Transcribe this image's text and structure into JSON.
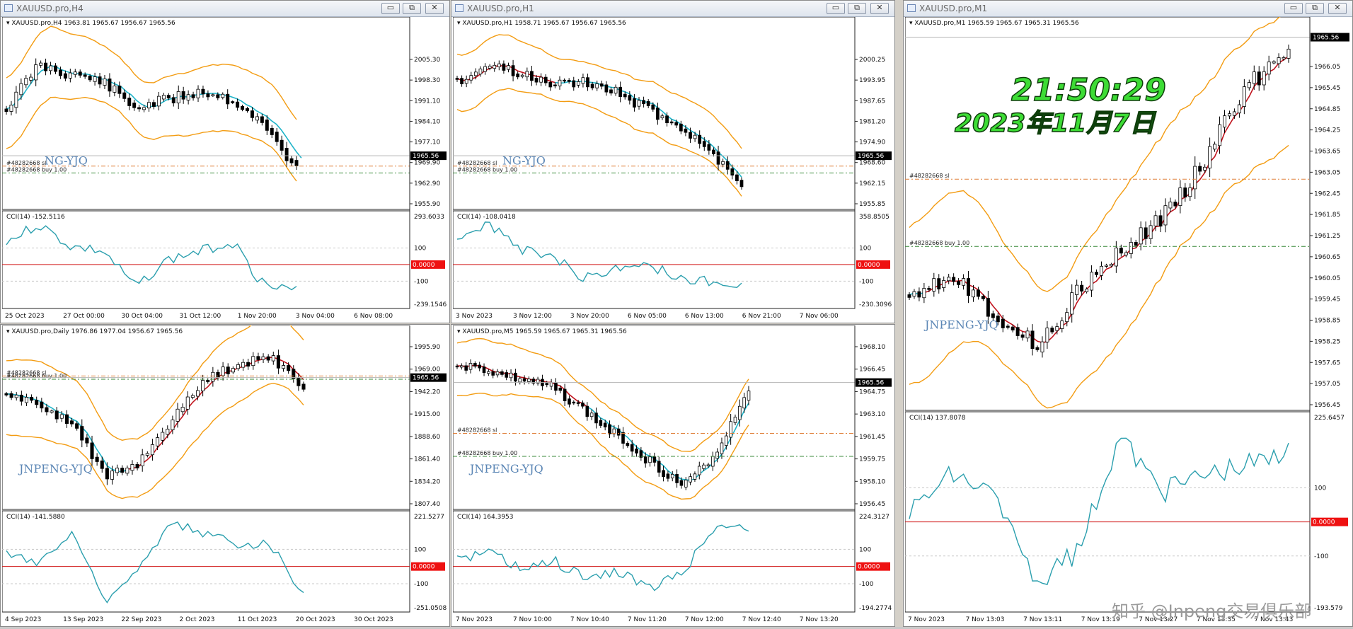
{
  "windows": [
    {
      "title": "XAUUSD.pro,H4",
      "main": {
        "header": "XAUUSD.pro,H4  1963.81 1965.67 1956.67 1965.56",
        "price_labels": [
          "2005.30",
          "1998.30",
          "1991.10",
          "1984.10",
          "1977.10",
          "1969.90",
          "1962.90",
          "1955.90"
        ],
        "current_price": "1965.56",
        "order_lines": [
          "#48282668 sl",
          "#48282668 buy 1.00"
        ],
        "watermark": "JNPENG-YJQ",
        "watermark_visible": "NG-YJQ"
      },
      "cci": {
        "header": "CCI(14) -152.5116",
        "labels": [
          "293.6033",
          "100",
          "0.0000",
          "-100",
          "-239.1546"
        ]
      },
      "dates": [
        "25 Oct 2023",
        "27 Oct 00:00",
        "30 Oct 04:00",
        "31 Oct 12:00",
        "1 Nov 20:00",
        "3 Nov 04:00",
        "6 Nov 08:00"
      ]
    },
    {
      "title": "XAUUSD.pro,H1",
      "main": {
        "header": "XAUUSD.pro,H1  1958.71 1965.67 1956.67 1965.56",
        "price_labels": [
          "2000.25",
          "1993.95",
          "1987.65",
          "1981.20",
          "1974.90",
          "1968.60",
          "1962.15",
          "1955.85"
        ],
        "current_price": "1965.56",
        "order_lines": [
          "#48282668 sl",
          "#48282668 buy 1.00"
        ],
        "watermark": "JNPENG-YJQ",
        "watermark_visible": "NG-YJQ"
      },
      "cci": {
        "header": "CCI(14) -108.0418",
        "labels": [
          "358.8505",
          "100",
          "0.0000",
          "-100",
          "-230.3096"
        ]
      },
      "dates": [
        "3 Nov 2023",
        "3 Nov 12:00",
        "3 Nov 20:00",
        "6 Nov 05:00",
        "6 Nov 13:00",
        "6 Nov 21:00",
        "7 Nov 06:00"
      ]
    },
    {
      "title": "XAUUSD.pro,M1",
      "main": {
        "header": "XAUUSD.pro,M1  1965.59 1965.67 1965.31 1965.56",
        "price_labels": [
          "1966.05",
          "1965.45",
          "1964.85",
          "1964.25",
          "1963.65",
          "1963.05",
          "1962.45",
          "1961.85",
          "1961.25",
          "1960.65",
          "1960.05",
          "1959.45",
          "1958.85",
          "1958.25",
          "1957.65",
          "1957.05",
          "1956.45"
        ],
        "current_price": "1965.56",
        "order_lines": [
          "#48282668 sl",
          "#48282668 buy 1.00"
        ],
        "watermark": "JNPENG-YJQ",
        "overlay_time": "21:50:29",
        "overlay_date": "2023年11月7日"
      },
      "cci": {
        "header": "CCI(14) 137.8078",
        "labels": [
          "225.6457",
          "100",
          "0.0000",
          "-100",
          "-193.579"
        ]
      },
      "dates": [
        "7 Nov 2023",
        "7 Nov 13:03",
        "7 Nov 13:11",
        "7 Nov 13:19",
        "7 Nov 13:27",
        "7 Nov 13:35",
        "7 Nov 13:43"
      ]
    },
    {
      "title": "",
      "main": {
        "header": "XAUUSD.pro,Daily  1976.86 1977.04 1956.67 1965.56",
        "price_labels": [
          "1995.90",
          "1969.00",
          "1942.20",
          "1915.00",
          "1888.60",
          "1861.40",
          "1834.20",
          "1807.40"
        ],
        "current_price": "1965.56",
        "order_lines": [
          "#48282668 sl",
          "#48282668 buy 1.00"
        ],
        "watermark": "JNPENG-YJQ"
      },
      "cci": {
        "header": "CCI(14) -141.5880",
        "labels": [
          "221.5277",
          "100",
          "0.0000",
          "-100",
          "-251.0508"
        ]
      },
      "dates": [
        "4 Sep 2023",
        "13 Sep 2023",
        "22 Sep 2023",
        "2 Oct 2023",
        "11 Oct 2023",
        "20 Oct 2023",
        "30 Oct 2023"
      ]
    },
    {
      "title": "",
      "main": {
        "header": "XAUUSD.pro,M5  1965.59 1965.67 1965.31 1965.56",
        "price_labels": [
          "1968.10",
          "1966.45",
          "1964.75",
          "1963.10",
          "1961.45",
          "1959.75",
          "1958.10",
          "1956.45"
        ],
        "current_price": "1965.56",
        "order_lines": [
          "#48282668 sl",
          "#48282668 buy 1.00"
        ],
        "watermark": "JNPENG-YJQ"
      },
      "cci": {
        "header": "CCI(14) 164.3953",
        "labels": [
          "224.3127",
          "100",
          "0.0000",
          "-100",
          "-194.2774"
        ]
      },
      "dates": [
        "7 Nov 2023",
        "7 Nov 10:00",
        "7 Nov 10:40",
        "7 Nov 11:20",
        "7 Nov 12:00",
        "7 Nov 12:40",
        "7 Nov 13:20"
      ]
    }
  ],
  "window_buttons": {
    "minimize": "▭",
    "restore": "⧉",
    "close": "✕"
  },
  "brand_watermark": "知乎 @Jnpeng交易俱乐部",
  "colors": {
    "bollinger": "#f39c12",
    "ma_fast": "#1fb4c9",
    "ma_slow": "#c0141e",
    "cci": "#2b9fae",
    "zero_line": "#d01616",
    "sl_line": "#e0803a",
    "buy_line": "#3a8a3a",
    "candle": "#000000",
    "time_overlay": "#3ddc35"
  }
}
